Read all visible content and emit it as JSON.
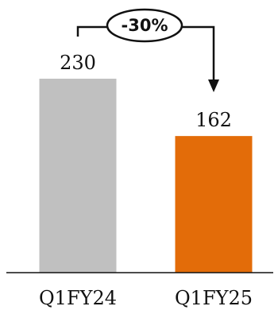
{
  "chart_data": {
    "type": "bar",
    "categories": [
      "Q1FY24",
      "Q1FY25"
    ],
    "values": [
      230,
      162
    ],
    "value_labels": [
      "230",
      "162"
    ],
    "colors": [
      "#c0c0c0",
      "#e36c09"
    ],
    "ylim": [
      0,
      250
    ],
    "title": "",
    "xlabel": "",
    "ylabel": "",
    "grid": false,
    "legend": "none",
    "annotation": {
      "text": "-30%",
      "from": "Q1FY24",
      "to": "Q1FY25"
    }
  }
}
